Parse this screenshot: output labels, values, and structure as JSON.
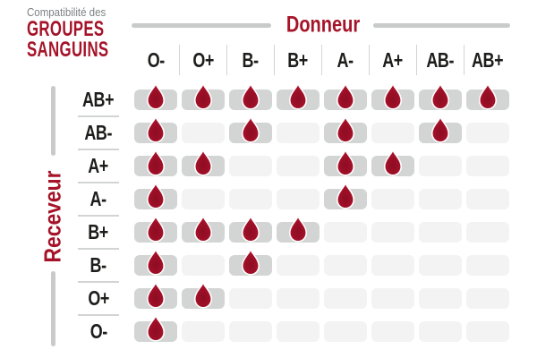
{
  "title": {
    "eyebrow": "Compatibilité des",
    "line1": "GROUPES",
    "line2": "SANGUINS"
  },
  "axes": {
    "donor": "Donneur",
    "receiver": "Receveur"
  },
  "chart_data": {
    "type": "heatmap",
    "title": "Compatibilité des GROUPES SANGUINS",
    "x_axis_label": "Donneur",
    "y_axis_label": "Receveur",
    "columns": [
      "O-",
      "O+",
      "B-",
      "B+",
      "A-",
      "A+",
      "AB-",
      "AB+"
    ],
    "rows": [
      "AB+",
      "AB-",
      "A+",
      "A-",
      "B+",
      "B-",
      "O+",
      "O-"
    ],
    "matrix": [
      [
        1,
        1,
        1,
        1,
        1,
        1,
        1,
        1
      ],
      [
        1,
        0,
        1,
        0,
        1,
        0,
        1,
        0
      ],
      [
        1,
        1,
        0,
        0,
        1,
        1,
        0,
        0
      ],
      [
        1,
        0,
        0,
        0,
        1,
        0,
        0,
        0
      ],
      [
        1,
        1,
        1,
        1,
        0,
        0,
        0,
        0
      ],
      [
        1,
        0,
        1,
        0,
        0,
        0,
        0,
        0
      ],
      [
        1,
        1,
        0,
        0,
        0,
        0,
        0,
        0
      ],
      [
        1,
        0,
        0,
        0,
        0,
        0,
        0,
        0
      ]
    ],
    "cell_marker": "blood-drop-icon",
    "legend_position": "none",
    "grid": false
  },
  "colors": {
    "accent_red": "#a51329",
    "drop_red_outer": "#b5142f",
    "drop_red_inner": "#8c0d22",
    "cell_filled": "#d3d5d5",
    "cell_empty": "#f2f3f2",
    "rail_gray": "#c9cbcb",
    "separator_gray": "#d2d4d4",
    "text_dark": "#1d1d1b",
    "text_gray": "#7d8083"
  }
}
